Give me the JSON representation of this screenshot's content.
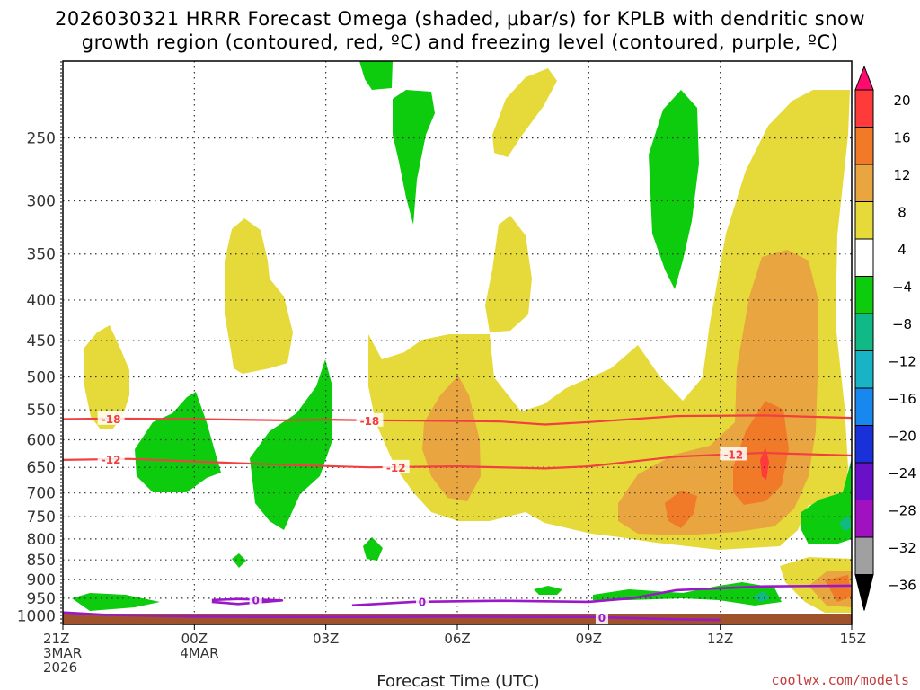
{
  "chart_data": {
    "type": "time-height cross section",
    "title_line1": "2026030321 HRRR Forecast Omega (shaded, μbar/s) for KPLB with dendritic snow",
    "title_line2": "growth region (contoured, red, ºC) and freezing level (contoured, purple, ºC)",
    "xlabel": "Forecast Time (UTC)",
    "x_ticks": [
      {
        "hour": 0,
        "lines": [
          "21Z",
          "3MAR",
          "2026"
        ]
      },
      {
        "hour": 3,
        "lines": [
          "00Z",
          "4MAR"
        ]
      },
      {
        "hour": 6,
        "lines": [
          "03Z"
        ]
      },
      {
        "hour": 9,
        "lines": [
          "06Z"
        ]
      },
      {
        "hour": 12,
        "lines": [
          "09Z"
        ]
      },
      {
        "hour": 15,
        "lines": [
          "12Z"
        ]
      },
      {
        "hour": 18,
        "lines": [
          "15Z"
        ]
      }
    ],
    "xlim": [
      0,
      18
    ],
    "ylim_hpa": [
      1025,
      200
    ],
    "y_ticks": [
      250,
      300,
      350,
      400,
      450,
      500,
      550,
      600,
      650,
      700,
      750,
      800,
      850,
      900,
      950,
      1000
    ],
    "colorbar": {
      "labels": [
        "20",
        "16",
        "12",
        "8",
        "4",
        "−4",
        "−8",
        "−12",
        "−16",
        "−20",
        "−24",
        "−28",
        "−32",
        "−36"
      ],
      "colors": [
        "#ff0a6e",
        "#ff3a3a",
        "#f07a28",
        "#e9a540",
        "#e6da3b",
        "#ffffff",
        "#0dcc0d",
        "#10b986",
        "#18b4c6",
        "#1888ee",
        "#1a30d8",
        "#6a10c8",
        "#a012c0",
        "#a0a0a0",
        "#000000"
      ]
    },
    "contours": {
      "dgz_red": [
        {
          "label": "-18",
          "label_hours": [
            1.1,
            7.0
          ],
          "points": [
            [
              0,
              565
            ],
            [
              1,
              564
            ],
            [
              3,
              565
            ],
            [
              5,
              567
            ],
            [
              6,
              566
            ],
            [
              7,
              567
            ],
            [
              9,
              568
            ],
            [
              10,
              569
            ],
            [
              11,
              574
            ],
            [
              12,
              570
            ],
            [
              14,
              560
            ],
            [
              16,
              559
            ],
            [
              18,
              563
            ]
          ]
        },
        {
          "label": "-12",
          "label_hours": [
            1.1,
            7.6,
            15.3
          ],
          "points": [
            [
              0,
              636
            ],
            [
              1.5,
              634
            ],
            [
              3,
              639
            ],
            [
              5,
              645
            ],
            [
              7,
              650
            ],
            [
              9,
              648
            ],
            [
              11,
              652
            ],
            [
              12,
              648
            ],
            [
              14,
              630
            ],
            [
              16,
              623
            ],
            [
              18,
              628
            ]
          ]
        }
      ],
      "freezing_purple": [
        {
          "label": "0",
          "label_hours": [
            4.4
          ],
          "points": [
            [
              3.4,
              955
            ],
            [
              4,
              952
            ],
            [
              5,
              956
            ],
            [
              4,
              966
            ],
            [
              3.4,
              960
            ]
          ]
        },
        {
          "label": "0",
          "label_hours": [
            8.2
          ],
          "points": [
            [
              6.6,
              970
            ],
            [
              8,
              960
            ],
            [
              10,
              957
            ],
            [
              12,
              960
            ],
            [
              13,
              950
            ],
            [
              14,
              928
            ],
            [
              16,
              918
            ],
            [
              18,
              916
            ]
          ]
        },
        {
          "label": "0",
          "label_hours": [
            12.3
          ],
          "points": [
            [
              0,
              990
            ],
            [
              1,
              997
            ],
            [
              3,
              1002
            ],
            [
              6,
              1003
            ],
            [
              9,
              1002
            ],
            [
              12,
              1003
            ],
            [
              14,
              1010
            ],
            [
              15,
              1012
            ]
          ]
        }
      ]
    },
    "omega_regions_description_values_μbar_s": {
      "green_lift": "-4 to -8",
      "yellow_sink": "4 to 8",
      "orange": "8 to 12",
      "dark_orange": "12 to 16",
      "red": "16 to 20"
    }
  },
  "credit": "coolwx.com/models"
}
